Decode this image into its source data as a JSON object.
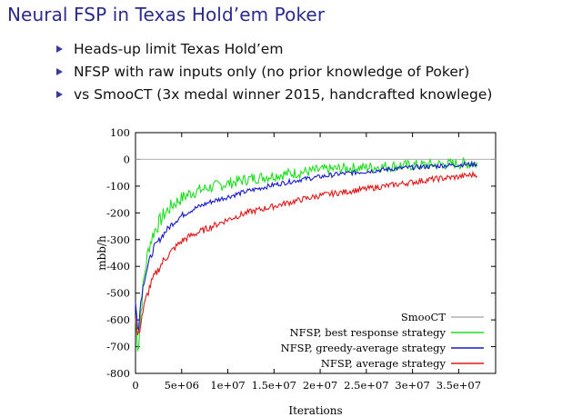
{
  "slide": {
    "title": "Neural FSP in Texas Hold’em Poker",
    "bullets": [
      "Heads-up limit Texas Hold’em",
      "NFSP with raw inputs only (no prior knowledge of Poker)",
      "vs SmooCT (3x medal winner 2015, handcrafted knowlege)"
    ]
  },
  "chart_data": {
    "type": "line",
    "title": "",
    "xlabel": "Iterations",
    "ylabel": "mbb/h",
    "xlim": [
      0,
      39000000
    ],
    "ylim": [
      -800,
      100
    ],
    "xticks": [
      0,
      5000000,
      10000000,
      15000000,
      20000000,
      25000000,
      30000000,
      35000000
    ],
    "xtick_labels": [
      "0",
      "5e+06",
      "1e+07",
      "1.5e+07",
      "2e+07",
      "2.5e+07",
      "3e+07",
      "3.5e+07"
    ],
    "yticks": [
      100,
      0,
      -100,
      -200,
      -300,
      -400,
      -500,
      -600,
      -700,
      -800
    ],
    "ytick_labels": [
      "100",
      "0",
      "-100",
      "-200",
      "-300",
      "-400",
      "-500",
      "-600",
      "-700",
      "-800"
    ],
    "legend_position": "bottom-right",
    "grid": false,
    "series": [
      {
        "name": "SmooCT",
        "color": "#b0b0b0",
        "x": [
          0,
          39000000
        ],
        "y": [
          0,
          0
        ]
      },
      {
        "name": "NFSP, best response strategy",
        "color": "#22dd22",
        "x": [
          0,
          300000,
          600000,
          1000000,
          1500000,
          2000000,
          3000000,
          4000000,
          5000000,
          6000000,
          8000000,
          10000000,
          12000000,
          15000000,
          18000000,
          20000000,
          22000000,
          25000000,
          28000000,
          30000000,
          32000000,
          35000000,
          37000000
        ],
        "y": [
          -600,
          -710,
          -560,
          -420,
          -320,
          -270,
          -210,
          -170,
          -145,
          -125,
          -105,
          -90,
          -75,
          -60,
          -48,
          -40,
          -35,
          -30,
          -25,
          -22,
          -20,
          -16,
          -15
        ]
      },
      {
        "name": "NFSP, greedy-average strategy",
        "color": "#1a1acc",
        "x": [
          0,
          300000,
          600000,
          1000000,
          1500000,
          2000000,
          3000000,
          4000000,
          5000000,
          6000000,
          8000000,
          10000000,
          12000000,
          15000000,
          18000000,
          20000000,
          22000000,
          25000000,
          28000000,
          30000000,
          32000000,
          35000000,
          37000000
        ],
        "y": [
          -540,
          -640,
          -520,
          -440,
          -380,
          -330,
          -280,
          -240,
          -210,
          -190,
          -160,
          -140,
          -120,
          -95,
          -75,
          -65,
          -55,
          -45,
          -35,
          -30,
          -26,
          -20,
          -18
        ]
      },
      {
        "name": "NFSP, average strategy",
        "color": "#dd1a1a",
        "x": [
          0,
          300000,
          600000,
          1000000,
          1500000,
          2000000,
          3000000,
          4000000,
          5000000,
          6000000,
          8000000,
          10000000,
          12000000,
          15000000,
          18000000,
          20000000,
          22000000,
          25000000,
          28000000,
          30000000,
          32000000,
          35000000,
          37000000
        ],
        "y": [
          -600,
          -670,
          -600,
          -540,
          -480,
          -440,
          -380,
          -340,
          -305,
          -285,
          -255,
          -225,
          -200,
          -175,
          -150,
          -135,
          -125,
          -110,
          -95,
          -85,
          -75,
          -65,
          -55
        ]
      }
    ]
  }
}
